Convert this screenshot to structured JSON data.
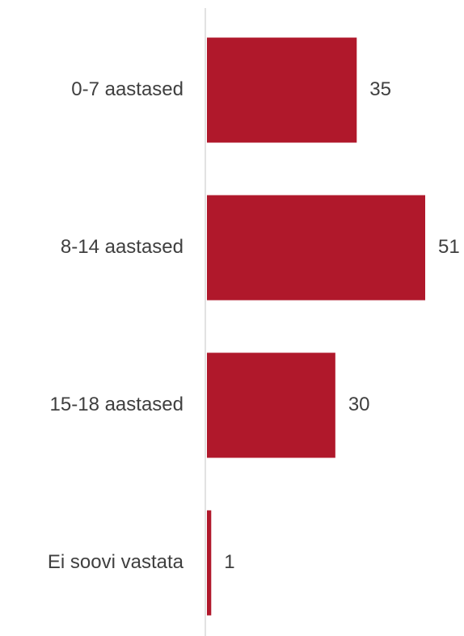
{
  "chart_data": {
    "type": "bar",
    "orientation": "horizontal",
    "categories": [
      "0-7 aastased",
      "8-14 aastased",
      "15-18 aastased",
      "Ei soovi vastata"
    ],
    "values": [
      35,
      51,
      30,
      1
    ],
    "data_labels": [
      "35",
      "51",
      "30",
      "1"
    ],
    "title": "",
    "xlabel": "",
    "ylabel": "",
    "xlim": [
      0,
      51
    ],
    "grid": false,
    "legend": "none",
    "colors": {
      "bar": "#b0182b",
      "axis": "#d9d9d9",
      "text": "#3f3f3f"
    }
  }
}
